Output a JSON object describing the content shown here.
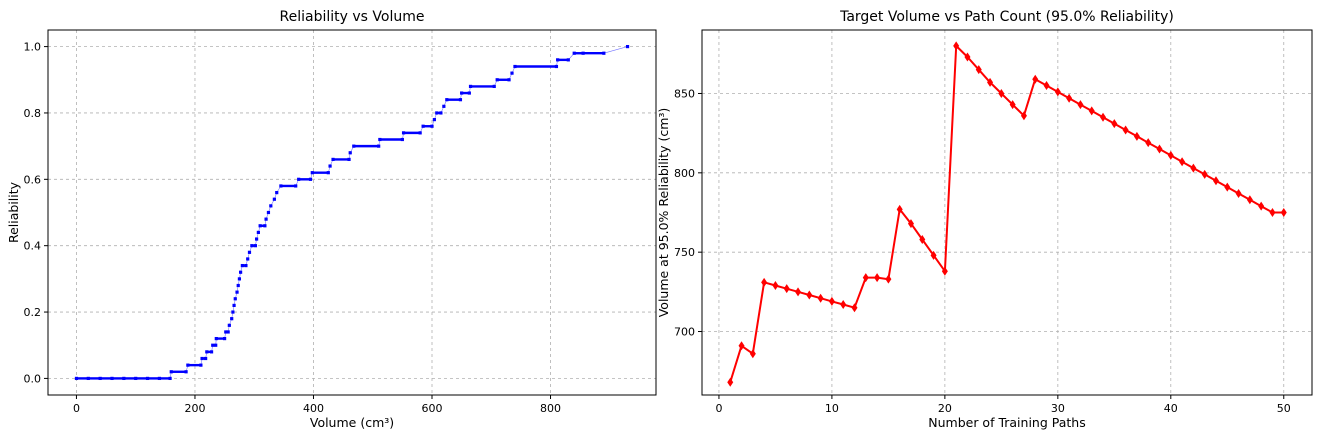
{
  "chart_data": [
    {
      "type": "scatter",
      "title": "Reliability vs Volume",
      "xlabel": "Volume (cm³)",
      "ylabel": "Reliability",
      "xlim": [
        -48,
        978
      ],
      "ylim": [
        -0.05,
        1.05
      ],
      "xticks": [
        0,
        200,
        400,
        600,
        800
      ],
      "yticks": [
        0.0,
        0.2,
        0.4,
        0.6,
        0.8,
        1.0
      ],
      "xtick_labels": [
        "0",
        "200",
        "400",
        "600",
        "800"
      ],
      "ytick_labels": [
        "0.0",
        "0.2",
        "0.4",
        "0.6",
        "0.8",
        "1.0"
      ],
      "grid": true,
      "series": [
        {
          "color": "#0000ff",
          "points": [
            [
              0,
              0
            ],
            [
              20,
              0
            ],
            [
              40,
              0
            ],
            [
              60,
              0
            ],
            [
              80,
              0
            ],
            [
              100,
              0
            ],
            [
              120,
              0
            ],
            [
              140,
              0
            ],
            [
              158,
              0
            ],
            [
              160,
              0.02
            ],
            [
              185,
              0.02
            ],
            [
              188,
              0.04
            ],
            [
              210,
              0.04
            ],
            [
              212,
              0.06
            ],
            [
              218,
              0.06
            ],
            [
              220,
              0.08
            ],
            [
              228,
              0.08
            ],
            [
              230,
              0.1
            ],
            [
              235,
              0.1
            ],
            [
              236,
              0.12
            ],
            [
              250,
              0.12
            ],
            [
              252,
              0.14
            ],
            [
              256,
              0.14
            ],
            [
              258,
              0.16
            ],
            [
              262,
              0.18
            ],
            [
              264,
              0.2
            ],
            [
              266,
              0.22
            ],
            [
              268,
              0.24
            ],
            [
              271,
              0.26
            ],
            [
              273,
              0.28
            ],
            [
              275,
              0.3
            ],
            [
              277,
              0.32
            ],
            [
              280,
              0.34
            ],
            [
              286,
              0.34
            ],
            [
              289,
              0.36
            ],
            [
              292,
              0.38
            ],
            [
              296,
              0.4
            ],
            [
              302,
              0.4
            ],
            [
              304,
              0.42
            ],
            [
              307,
              0.44
            ],
            [
              310,
              0.46
            ],
            [
              318,
              0.46
            ],
            [
              320,
              0.48
            ],
            [
              324,
              0.5
            ],
            [
              328,
              0.52
            ],
            [
              334,
              0.54
            ],
            [
              338,
              0.56
            ],
            [
              345,
              0.58
            ],
            [
              370,
              0.58
            ],
            [
              375,
              0.6
            ],
            [
              395,
              0.6
            ],
            [
              398,
              0.62
            ],
            [
              425,
              0.62
            ],
            [
              428,
              0.64
            ],
            [
              433,
              0.66
            ],
            [
              460,
              0.66
            ],
            [
              462,
              0.68
            ],
            [
              468,
              0.7
            ],
            [
              510,
              0.7
            ],
            [
              512,
              0.72
            ],
            [
              550,
              0.72
            ],
            [
              552,
              0.74
            ],
            [
              580,
              0.74
            ],
            [
              585,
              0.76
            ],
            [
              600,
              0.76
            ],
            [
              604,
              0.78
            ],
            [
              608,
              0.8
            ],
            [
              615,
              0.8
            ],
            [
              620,
              0.82
            ],
            [
              625,
              0.84
            ],
            [
              648,
              0.84
            ],
            [
              650,
              0.86
            ],
            [
              663,
              0.86
            ],
            [
              665,
              0.88
            ],
            [
              705,
              0.88
            ],
            [
              710,
              0.9
            ],
            [
              730,
              0.9
            ],
            [
              735,
              0.92
            ],
            [
              740,
              0.94
            ],
            [
              810,
              0.94
            ],
            [
              812,
              0.96
            ],
            [
              830,
              0.96
            ],
            [
              840,
              0.98
            ],
            [
              855,
              0.98
            ],
            [
              890,
              0.98
            ],
            [
              930,
              1.0
            ]
          ]
        }
      ]
    },
    {
      "type": "line",
      "title": "Target Volume vs Path Count (95.0% Reliability)",
      "xlabel": "Number of Training Paths",
      "ylabel": "Volume at 95.0% Reliability (cm³)",
      "xlim": [
        -1.5,
        52.5
      ],
      "ylim": [
        660,
        890
      ],
      "xticks": [
        0,
        10,
        20,
        30,
        40,
        50
      ],
      "yticks": [
        700,
        750,
        800,
        850
      ],
      "xtick_labels": [
        "0",
        "10",
        "20",
        "30",
        "40",
        "50"
      ],
      "ytick_labels": [
        "700",
        "750",
        "800",
        "850"
      ],
      "grid": true,
      "series": [
        {
          "color": "#ff0000",
          "x": [
            1,
            2,
            3,
            4,
            5,
            6,
            7,
            8,
            9,
            10,
            11,
            12,
            13,
            14,
            15,
            16,
            17,
            18,
            19,
            20,
            21,
            22,
            23,
            24,
            25,
            26,
            27,
            28,
            29,
            30,
            31,
            32,
            33,
            34,
            35,
            36,
            37,
            38,
            39,
            40,
            41,
            42,
            43,
            44,
            45,
            46,
            47,
            48,
            49,
            50
          ],
          "y": [
            668,
            691,
            686,
            731,
            729,
            727,
            725,
            723,
            721,
            719,
            717,
            715,
            734,
            734,
            733,
            777,
            768,
            758,
            748,
            738,
            880,
            873,
            865,
            857,
            850,
            843,
            836,
            859,
            855,
            851,
            847,
            843,
            839,
            835,
            831,
            827,
            823,
            819,
            815,
            811,
            807,
            803,
            799,
            795,
            791,
            787,
            783,
            779,
            775,
            775
          ]
        }
      ]
    }
  ]
}
